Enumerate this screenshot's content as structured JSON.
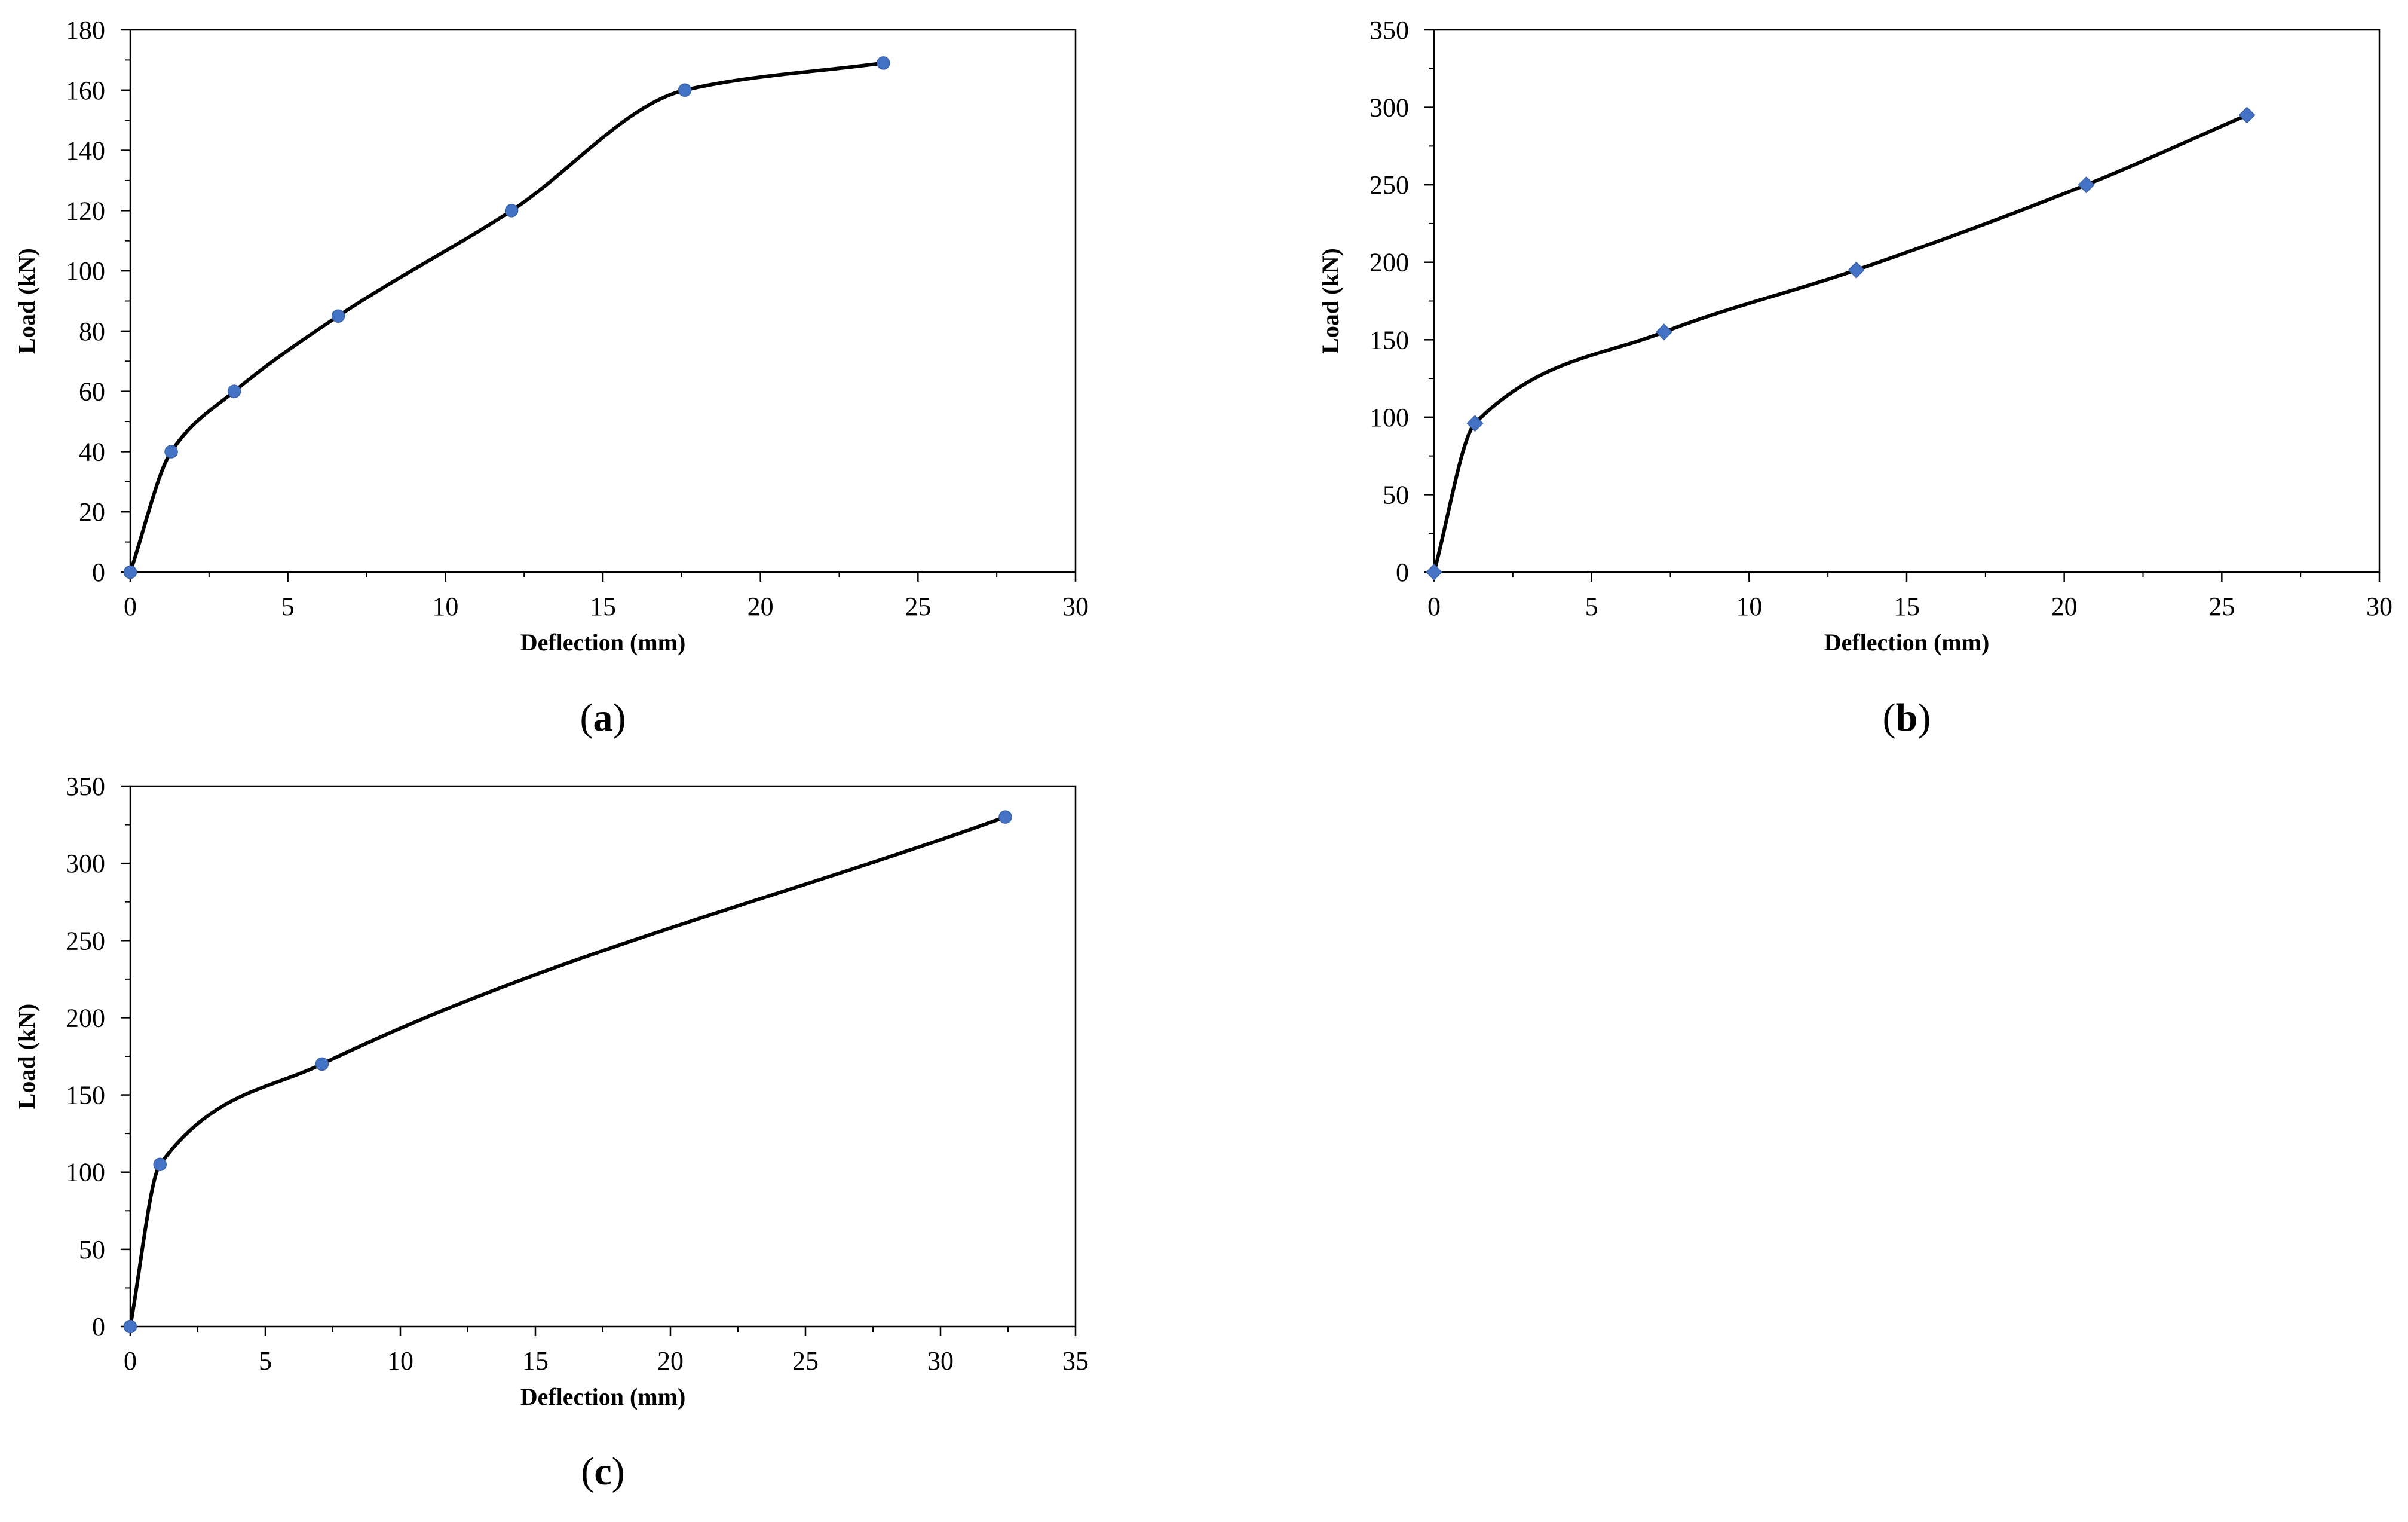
{
  "chart_data": [
    {
      "type": "line",
      "panel_label": "a",
      "xlabel": "Deflection (mm)",
      "ylabel": "Load (kN)",
      "xlim": [
        0,
        30
      ],
      "ylim": [
        0,
        180
      ],
      "x_ticks": [
        0,
        5,
        10,
        15,
        20,
        25,
        30
      ],
      "y_ticks": [
        0,
        20,
        40,
        60,
        80,
        100,
        120,
        140,
        160,
        180
      ],
      "grid": false,
      "smooth": true,
      "marker": "circle",
      "series": [
        {
          "x": [
            0,
            1.3,
            3.3,
            6.6,
            12.1,
            17.6,
            23.9
          ],
          "y": [
            0,
            40,
            60,
            85,
            120,
            160,
            169
          ]
        }
      ]
    },
    {
      "type": "line",
      "panel_label": "b",
      "xlabel": "Deflection (mm)",
      "ylabel": "Load (kN)",
      "xlim": [
        0,
        30
      ],
      "ylim": [
        0,
        350
      ],
      "x_ticks": [
        0,
        5,
        10,
        15,
        20,
        25,
        30
      ],
      "y_ticks": [
        0,
        50,
        100,
        150,
        200,
        250,
        300,
        350
      ],
      "grid": false,
      "smooth": true,
      "marker": "diamond",
      "series": [
        {
          "x": [
            0,
            1.3,
            7.3,
            13.4,
            20.7,
            25.8
          ],
          "y": [
            0,
            96,
            155,
            195,
            250,
            295
          ]
        }
      ]
    },
    {
      "type": "line",
      "panel_label": "c",
      "xlabel": "Deflection (mm)",
      "ylabel": "Load (kN)",
      "xlim": [
        0,
        35
      ],
      "ylim": [
        0,
        350
      ],
      "x_ticks": [
        0,
        5,
        10,
        15,
        20,
        25,
        30,
        35
      ],
      "y_ticks": [
        0,
        50,
        100,
        150,
        200,
        250,
        300,
        350
      ],
      "grid": false,
      "smooth": true,
      "marker": "circle",
      "series": [
        {
          "x": [
            0,
            1.1,
            7.1,
            32.4
          ],
          "y": [
            0,
            105,
            170,
            330
          ]
        }
      ]
    }
  ],
  "colors": {
    "line": "#000000",
    "marker": "#4472C4",
    "axis": "#000000"
  }
}
